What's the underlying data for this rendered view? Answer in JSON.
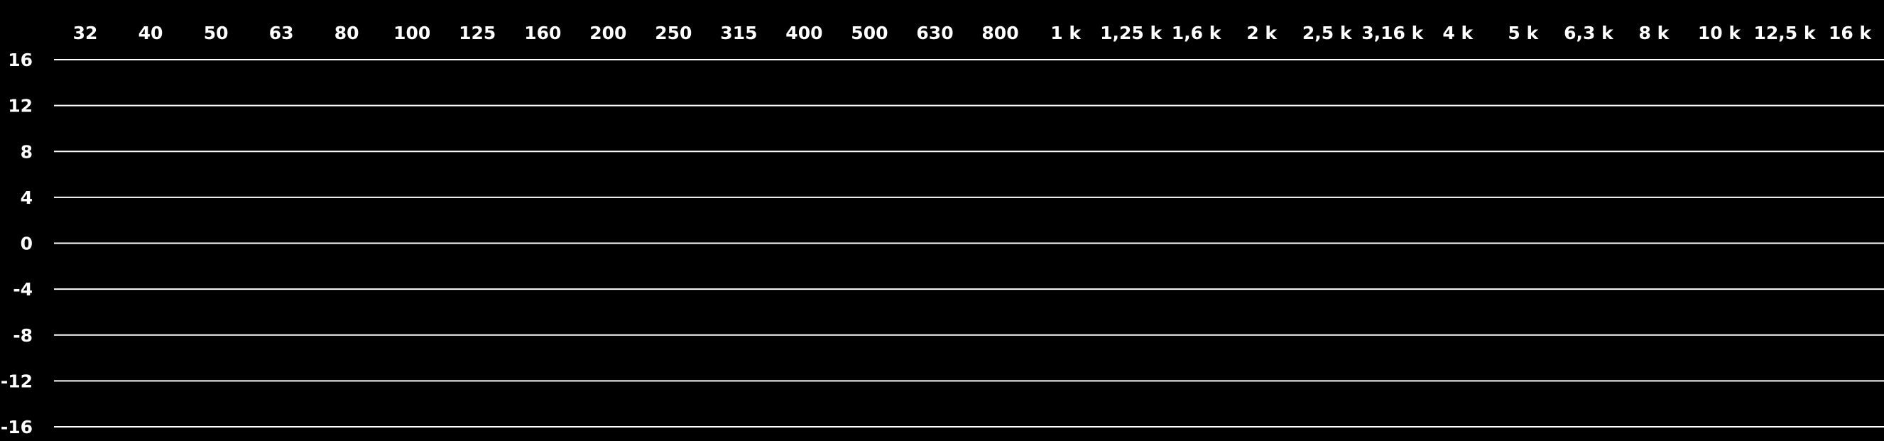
{
  "frequency_labels": [
    "32",
    "40",
    "50",
    "63",
    "80",
    "100",
    "125",
    "160",
    "200",
    "250",
    "315",
    "400",
    "500",
    "630",
    "800",
    "1 k",
    "1,25 k",
    "1,6 k",
    "2 k",
    "2,5 k",
    "3,16 k",
    "4 k",
    "5 k",
    "6,3 k",
    "8 k",
    "10 k",
    "12,5 k",
    "16 k"
  ],
  "gain_labels": [
    "16",
    "12",
    "8",
    "4",
    "0",
    "-4",
    "-8",
    "-12",
    "-16"
  ],
  "colors": {
    "background": "#000000",
    "foreground": "#ffffff"
  }
}
